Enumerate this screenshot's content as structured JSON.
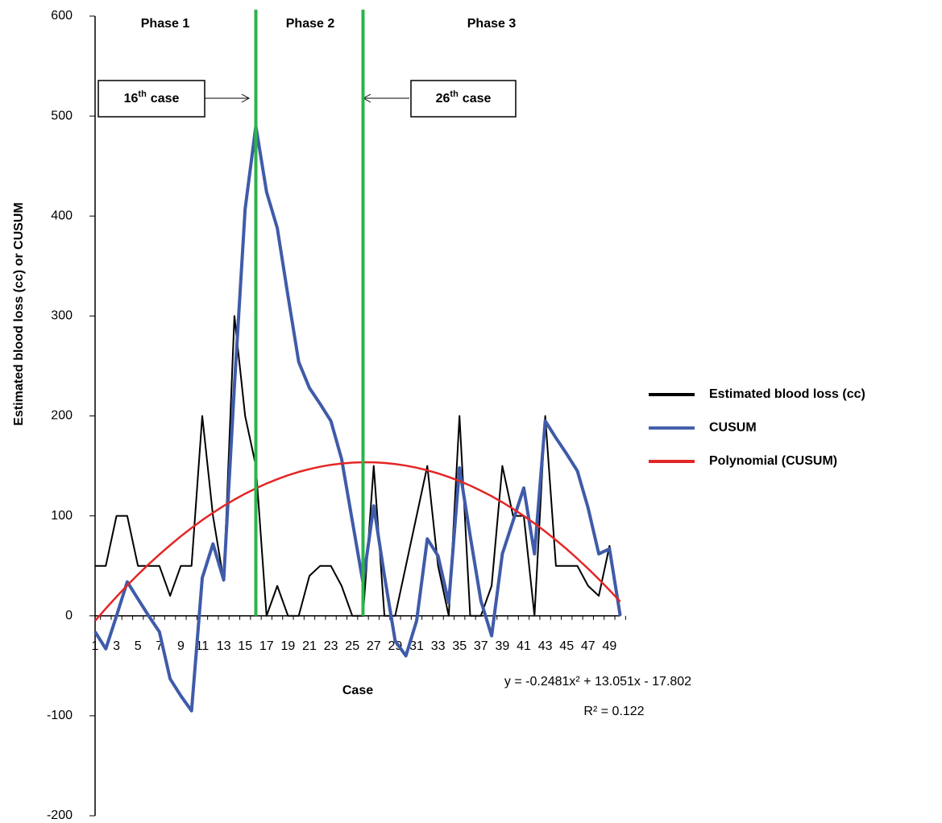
{
  "chart_data": {
    "type": "line",
    "y_label": "Estimated blood loss (cc) or CUSUM",
    "x_label": "Case",
    "categories": [
      1,
      null,
      3,
      null,
      5,
      null,
      7,
      null,
      9,
      null,
      11,
      null,
      13,
      null,
      15,
      null,
      17,
      null,
      19,
      null,
      21,
      null,
      23,
      null,
      25,
      null,
      27,
      null,
      29,
      null,
      31,
      null,
      33,
      null,
      35,
      null,
      37,
      null,
      39,
      null,
      41,
      null,
      43,
      null,
      45,
      null,
      47,
      null,
      49,
      null
    ],
    "ylim": [
      -200,
      600
    ],
    "yticks": [
      -200,
      -100,
      0,
      100,
      200,
      300,
      400,
      500,
      600
    ],
    "series": [
      {
        "name": "Estimated blood loss (cc)",
        "color": "#000000",
        "width": 2,
        "values": [
          50,
          50,
          100,
          100,
          50,
          50,
          50,
          20,
          50,
          50,
          200,
          100,
          35,
          300,
          200,
          150,
          0,
          30,
          0,
          0,
          40,
          50,
          50,
          30,
          0,
          0,
          150,
          0,
          0,
          50,
          100,
          150,
          50,
          0,
          200,
          0,
          0,
          30,
          150,
          100,
          100,
          0,
          200,
          50,
          50,
          50,
          30,
          20,
          70,
          0
        ]
      },
      {
        "name": "CUSUM",
        "color": "#3f5ba9",
        "width": 4,
        "values": [
          -16,
          -33,
          0,
          34,
          17,
          0,
          -16,
          -63,
          -80,
          -95,
          38,
          72,
          36,
          230,
          407,
          490,
          424,
          388,
          320,
          254,
          228,
          212,
          195,
          157,
          95,
          33,
          110,
          40,
          -25,
          -40,
          -5,
          77,
          60,
          13,
          148,
          80,
          15,
          -20,
          62,
          95,
          128,
          62,
          195,
          178,
          162,
          145,
          108,
          62,
          67,
          0
        ]
      },
      {
        "name": "Polynomial (CUSUM)",
        "color": "#e32726",
        "width": 2.5,
        "values": [
          -5.0,
          7.3,
          19.1,
          30.5,
          41.3,
          51.6,
          61.4,
          70.7,
          79.6,
          87.9,
          95.8,
          103.1,
          110.0,
          116.3,
          122.2,
          127.5,
          132.4,
          136.7,
          140.6,
          144.0,
          146.8,
          149.2,
          151.1,
          152.4,
          153.3,
          153.7,
          153.6,
          153.0,
          151.9,
          150.3,
          148.2,
          145.6,
          142.5,
          138.9,
          134.9,
          130.3,
          125.2,
          119.7,
          113.6,
          107.0,
          100.0,
          92.4,
          84.4,
          75.8,
          66.8,
          57.2,
          47.2,
          36.7,
          25.7,
          14.2
        ]
      }
    ],
    "vlines": [
      16,
      26
    ],
    "vline_color": "#2db34a",
    "phases": [
      "Phase 1",
      "Phase 2",
      "Phase 3"
    ],
    "case_notes": [
      {
        "number": "16",
        "suffix": "th",
        "text": "case"
      },
      {
        "number": "26",
        "suffix": "th",
        "text": "case"
      }
    ],
    "equation": "y = -0.2481x² + 13.051x - 17.802",
    "r_squared": "R² = 0.122",
    "legend": "right"
  }
}
